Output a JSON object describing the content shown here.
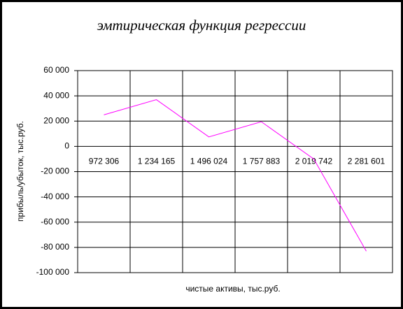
{
  "chart_data": {
    "type": "line",
    "title": "эмтирическая функция регрессии",
    "x_label": "чистые активы, тыс.руб.",
    "y_label": "прибыль/убыток, тыс.руб.",
    "categories": [
      "972 306",
      "1 234 165",
      "1 496 024",
      "1 757 883",
      "2 019 742",
      "2 281 601"
    ],
    "series": [
      {
        "color": "#ff00ff",
        "values": [
          25000,
          37000,
          7500,
          19500,
          -10000,
          -83000
        ]
      }
    ],
    "ylim": [
      -100000,
      60000
    ],
    "yticks": [
      {
        "value": -100000,
        "label": "-100 000"
      },
      {
        "value": -80000,
        "label": "-80 000"
      },
      {
        "value": -60000,
        "label": "-60 000"
      },
      {
        "value": -40000,
        "label": "-40 000"
      },
      {
        "value": -20000,
        "label": "-20 000"
      },
      0,
      {
        "value": 20000,
        "label": "20 000"
      },
      {
        "value": 40000,
        "label": "40 000"
      },
      {
        "value": 60000,
        "label": "60 000"
      }
    ],
    "grid": true
  }
}
